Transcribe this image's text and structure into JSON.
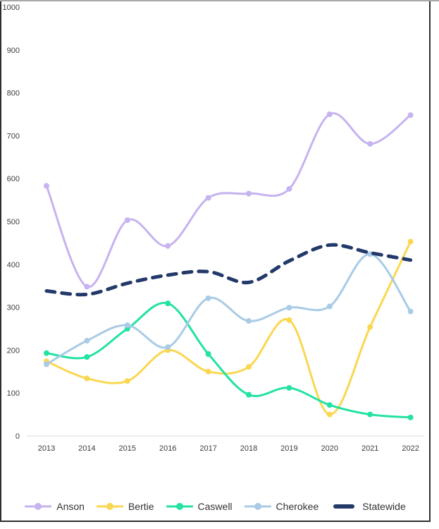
{
  "chart_data": {
    "type": "line",
    "title": "",
    "xlabel": "",
    "ylabel": "",
    "categories": [
      "2013",
      "2014",
      "2015",
      "2016",
      "2017",
      "2018",
      "2019",
      "2020",
      "2021",
      "2022"
    ],
    "y_ticks": [
      "0",
      "100",
      "200",
      "300",
      "400",
      "500",
      "600",
      "700",
      "800",
      "900",
      "1000"
    ],
    "ylim": [
      0,
      1000
    ],
    "grid": false,
    "legend_position": "bottom",
    "series": [
      {
        "name": "Anson",
        "color": "#c6b3f0",
        "dash": false,
        "marker": true,
        "values": [
          583,
          348,
          503,
          443,
          555,
          565,
          576,
          750,
          681,
          748
        ]
      },
      {
        "name": "Bertie",
        "color": "#fad750",
        "dash": false,
        "marker": true,
        "values": [
          174,
          134,
          128,
          200,
          150,
          161,
          270,
          50,
          254,
          453
        ]
      },
      {
        "name": "Caswell",
        "color": "#23e2a4",
        "dash": false,
        "marker": true,
        "values": [
          193,
          184,
          250,
          309,
          191,
          96,
          112,
          72,
          50,
          43
        ]
      },
      {
        "name": "Cherokee",
        "color": "#a9cbe6",
        "dash": false,
        "marker": true,
        "values": [
          167,
          222,
          258,
          207,
          321,
          268,
          299,
          302,
          424,
          290
        ]
      },
      {
        "name": "Statewide",
        "color": "#233969",
        "dash": true,
        "marker": false,
        "values": [
          338,
          330,
          356,
          375,
          383,
          358,
          408,
          445,
          427,
          410
        ]
      }
    ],
    "axis_line_color": "#dcdcdc"
  }
}
